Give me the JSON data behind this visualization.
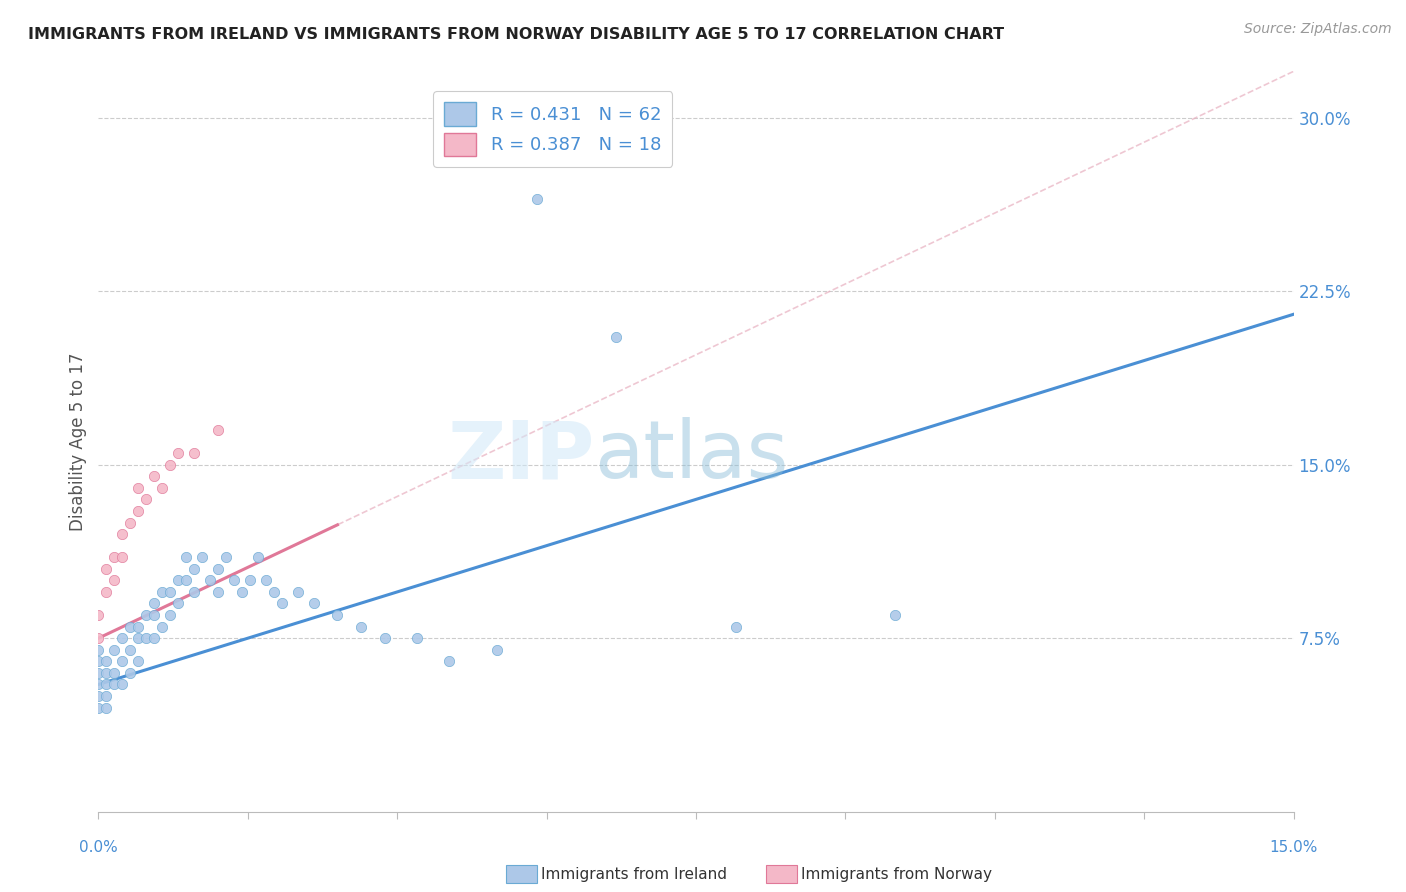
{
  "title": "IMMIGRANTS FROM IRELAND VS IMMIGRANTS FROM NORWAY DISABILITY AGE 5 TO 17 CORRELATION CHART",
  "source_text": "Source: ZipAtlas.com",
  "ylabel": "Disability Age 5 to 17",
  "xlim": [
    0.0,
    0.15
  ],
  "ylim": [
    0.0,
    0.32
  ],
  "ytick_positions": [
    0.075,
    0.15,
    0.225,
    0.3
  ],
  "ireland_color": "#adc8e8",
  "ireland_edge_color": "#6aaad4",
  "ireland_line_color": "#4a8fd4",
  "norway_color": "#f4b8c8",
  "norway_edge_color": "#e07898",
  "norway_line_color": "#e07898",
  "dashed_line_color": "#e8b0c0",
  "background_color": "#ffffff",
  "grid_color": "#cccccc",
  "title_color": "#222222",
  "tick_color": "#4a8fd4",
  "ireland_trend_x0": 0.0,
  "ireland_trend_y0": 0.055,
  "ireland_trend_x1": 0.15,
  "ireland_trend_y1": 0.215,
  "norway_trend_x0": 0.0,
  "norway_trend_y0": 0.075,
  "norway_trend_x1": 0.15,
  "norway_trend_y1": 0.32,
  "ireland_scatter_x": [
    0.0,
    0.0,
    0.0,
    0.0,
    0.0,
    0.0,
    0.001,
    0.001,
    0.001,
    0.001,
    0.001,
    0.002,
    0.002,
    0.002,
    0.003,
    0.003,
    0.003,
    0.004,
    0.004,
    0.004,
    0.005,
    0.005,
    0.005,
    0.006,
    0.006,
    0.007,
    0.007,
    0.007,
    0.008,
    0.008,
    0.009,
    0.009,
    0.01,
    0.01,
    0.011,
    0.011,
    0.012,
    0.012,
    0.013,
    0.014,
    0.015,
    0.015,
    0.016,
    0.017,
    0.018,
    0.019,
    0.02,
    0.021,
    0.022,
    0.023,
    0.025,
    0.027,
    0.03,
    0.033,
    0.036,
    0.04,
    0.044,
    0.05,
    0.055,
    0.065,
    0.08,
    0.1
  ],
  "ireland_scatter_y": [
    0.05,
    0.055,
    0.06,
    0.065,
    0.07,
    0.045,
    0.055,
    0.06,
    0.065,
    0.05,
    0.045,
    0.06,
    0.07,
    0.055,
    0.065,
    0.055,
    0.075,
    0.06,
    0.07,
    0.08,
    0.075,
    0.08,
    0.065,
    0.085,
    0.075,
    0.085,
    0.09,
    0.075,
    0.095,
    0.08,
    0.095,
    0.085,
    0.1,
    0.09,
    0.1,
    0.11,
    0.095,
    0.105,
    0.11,
    0.1,
    0.105,
    0.095,
    0.11,
    0.1,
    0.095,
    0.1,
    0.11,
    0.1,
    0.095,
    0.09,
    0.095,
    0.09,
    0.085,
    0.08,
    0.075,
    0.075,
    0.065,
    0.07,
    0.265,
    0.205,
    0.08,
    0.085
  ],
  "norway_scatter_x": [
    0.0,
    0.0,
    0.001,
    0.001,
    0.002,
    0.002,
    0.003,
    0.003,
    0.004,
    0.005,
    0.005,
    0.006,
    0.007,
    0.008,
    0.009,
    0.01,
    0.012,
    0.015
  ],
  "norway_scatter_y": [
    0.085,
    0.075,
    0.095,
    0.105,
    0.1,
    0.11,
    0.12,
    0.11,
    0.125,
    0.13,
    0.14,
    0.135,
    0.145,
    0.14,
    0.15,
    0.155,
    0.155,
    0.165
  ]
}
